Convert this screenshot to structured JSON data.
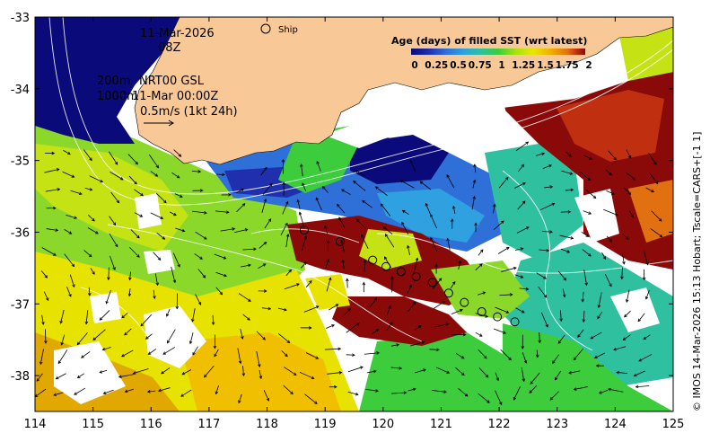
{
  "map": {
    "date": "11-Mar-2026",
    "hour": "08Z",
    "ship_label": "Ship",
    "isobath_shallow": "200m",
    "isobath_deep": "1000m",
    "product": "NRT00 GSL",
    "product_time": "11-Mar 00:00Z",
    "vector_scale": "0.5m/s (1kt 24h)",
    "credit": "© IMOS 14-Mar-2026 15:13 Hobart; Tscale=CARS+[-1 1]",
    "colorbar": {
      "title": "Age (days) of filled SST (wrt latest)",
      "range": [
        0,
        2
      ],
      "ticks": [
        "0",
        "0.25",
        "0.5",
        "0.75",
        "1",
        "1.25",
        "1.5",
        "1.75",
        "2"
      ],
      "colors": [
        "#0a0a7a",
        "#1f2fae",
        "#2f6fd8",
        "#2fa0e0",
        "#2fc0a0",
        "#3ccc3c",
        "#a8e010",
        "#e8e800",
        "#f0b000",
        "#e07010",
        "#c03010",
        "#8a0a0a"
      ]
    },
    "x_axis": {
      "ticks": [
        "114",
        "115",
        "116",
        "117",
        "118",
        "119",
        "120",
        "121",
        "122",
        "123",
        "124",
        "125"
      ],
      "range": [
        114,
        125
      ]
    },
    "y_axis": {
      "ticks": [
        "-33",
        "-34",
        "-35",
        "-36",
        "-37",
        "-38"
      ],
      "range": [
        -38.5,
        -33
      ]
    },
    "colors": {
      "land": "#f9c897",
      "deep_navy": "#0a0a7a",
      "missing": "#ffffff"
    },
    "ship_track": [
      {
        "lon": 118.64,
        "lat": -35.97
      },
      {
        "lon": 119.26,
        "lat": -36.13
      },
      {
        "lon": 119.82,
        "lat": -36.39
      },
      {
        "lon": 120.05,
        "lat": -36.48
      },
      {
        "lon": 120.31,
        "lat": -36.55
      },
      {
        "lon": 120.57,
        "lat": -36.62
      },
      {
        "lon": 120.85,
        "lat": -36.7
      },
      {
        "lon": 121.13,
        "lat": -36.85
      },
      {
        "lon": 121.4,
        "lat": -36.98
      },
      {
        "lon": 121.7,
        "lat": -37.11
      },
      {
        "lon": 121.97,
        "lat": -37.18
      },
      {
        "lon": 122.27,
        "lat": -37.25
      }
    ]
  }
}
